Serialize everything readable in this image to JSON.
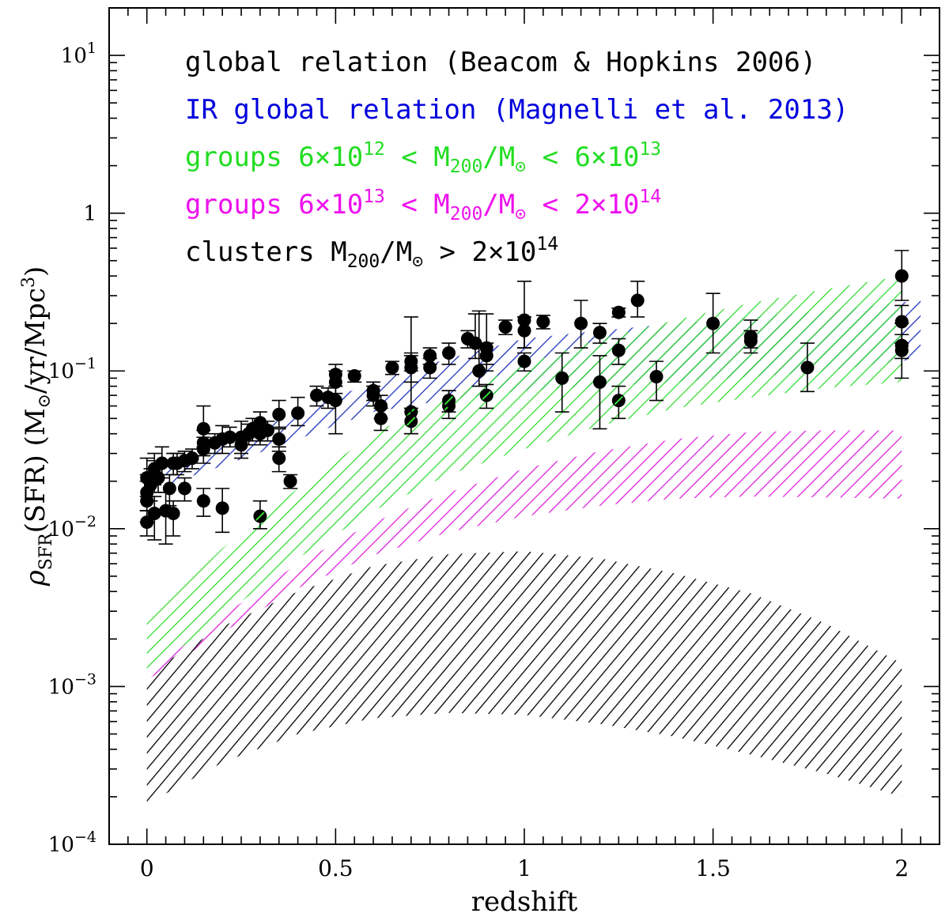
{
  "chart_data": {
    "type": "scatter",
    "title": "",
    "xlabel": "redshift",
    "ylabel": {
      "rho": "ρ",
      "sub": "SFR",
      "main": "(SFR)",
      "units_prefix": "(M",
      "units_sym": "⊙",
      "units_mid": "/yr/Mpc",
      "units_sup": "3",
      "units_close": ")"
    },
    "x_scale": "linear",
    "y_scale": "log",
    "xlim": [
      -0.1,
      2.1
    ],
    "ylim": [
      0.0001,
      20
    ],
    "x_ticks": [
      {
        "value": 0,
        "label": "0"
      },
      {
        "value": 0.5,
        "label": "0.5"
      },
      {
        "value": 1,
        "label": "1"
      },
      {
        "value": 1.5,
        "label": "1.5"
      },
      {
        "value": 2,
        "label": "2"
      }
    ],
    "y_ticks": [
      {
        "value": 0.0001,
        "base": "10",
        "exp": "−4"
      },
      {
        "value": 0.001,
        "base": "10",
        "exp": "−3"
      },
      {
        "value": 0.01,
        "base": "10",
        "exp": "−2"
      },
      {
        "value": 0.1,
        "base": "10",
        "exp": "−1"
      },
      {
        "value": 1,
        "base": "1",
        "exp": ""
      },
      {
        "value": 10,
        "base": "10",
        "exp": "1"
      }
    ],
    "legend": [
      {
        "parts": [
          {
            "t": "global relation (Beacom & Hopkins 2006)"
          }
        ],
        "color": "#000000"
      },
      {
        "parts": [
          {
            "t": "IR global relation (Magnelli et al. 2013)"
          }
        ],
        "color": "#0000dd"
      },
      {
        "parts": [
          {
            "t": "groups 6×10"
          },
          {
            "t": "12",
            "sup": true
          },
          {
            "t": " < M"
          },
          {
            "t": "200",
            "sub": true
          },
          {
            "t": "/M"
          },
          {
            "t": "⊙",
            "sub": true
          },
          {
            "t": " < 6×10"
          },
          {
            "t": "13",
            "sup": true
          }
        ],
        "color": "#22dd22"
      },
      {
        "parts": [
          {
            "t": "groups 6×10"
          },
          {
            "t": "13",
            "sup": true
          },
          {
            "t": " < M"
          },
          {
            "t": "200",
            "sub": true
          },
          {
            "t": "/M"
          },
          {
            "t": "⊙",
            "sub": true
          },
          {
            "t": " < 2×10"
          },
          {
            "t": "14",
            "sup": true
          }
        ],
        "color": "#ee11ee"
      },
      {
        "parts": [
          {
            "t": "clusters M"
          },
          {
            "t": "200",
            "sub": true
          },
          {
            "t": "/M"
          },
          {
            "t": "⊙",
            "sub": true
          },
          {
            "t": " > 2×10"
          },
          {
            "t": "14",
            "sup": true
          }
        ],
        "color": "#000000"
      }
    ],
    "bands": [
      {
        "name": "IR global relation (Magnelli et al. 2013)",
        "color": "#2233bb",
        "x": [
          0.05,
          0.2,
          0.4,
          0.6,
          0.8,
          1.0,
          1.2,
          1.4,
          1.6,
          1.8,
          2.05
        ],
        "lower": [
          0.019,
          0.025,
          0.037,
          0.055,
          0.066,
          0.075,
          0.08,
          0.085,
          0.092,
          0.1,
          0.12
        ],
        "upper": [
          0.026,
          0.035,
          0.055,
          0.085,
          0.12,
          0.16,
          0.18,
          0.2,
          0.22,
          0.24,
          0.28
        ]
      },
      {
        "name": "groups 6e12-6e13",
        "color": "#33dd33",
        "x": [
          0.0,
          0.2,
          0.4,
          0.6,
          0.8,
          1.0,
          1.2,
          1.4,
          1.6,
          1.8,
          2.0
        ],
        "lower": [
          0.0012,
          0.0028,
          0.0065,
          0.013,
          0.022,
          0.032,
          0.045,
          0.058,
          0.068,
          0.078,
          0.085
        ],
        "upper": [
          0.0026,
          0.0075,
          0.018,
          0.04,
          0.07,
          0.11,
          0.16,
          0.21,
          0.27,
          0.33,
          0.4
        ]
      },
      {
        "name": "groups 6e13-2e14",
        "color": "#dd22dd",
        "x": [
          0.0,
          0.2,
          0.4,
          0.6,
          0.8,
          1.0,
          1.2,
          1.4,
          1.6,
          1.8,
          2.0
        ],
        "lower": [
          0.0011,
          0.0022,
          0.0042,
          0.0068,
          0.0095,
          0.012,
          0.014,
          0.0155,
          0.016,
          0.0158,
          0.0155
        ],
        "upper": [
          0.0012,
          0.0028,
          0.006,
          0.011,
          0.017,
          0.024,
          0.031,
          0.037,
          0.041,
          0.042,
          0.042
        ]
      },
      {
        "name": "clusters > 2e14",
        "color": "#000000",
        "x": [
          0.0,
          0.2,
          0.4,
          0.6,
          0.8,
          1.0,
          1.2,
          1.4,
          1.6,
          1.8,
          2.0
        ],
        "lower": [
          0.00018,
          0.00033,
          0.0005,
          0.00063,
          0.00068,
          0.00066,
          0.00058,
          0.00048,
          0.00037,
          0.00028,
          0.0002
        ],
        "upper": [
          0.0012,
          0.0024,
          0.004,
          0.0058,
          0.0069,
          0.0072,
          0.0065,
          0.0052,
          0.0039,
          0.0025,
          0.0014
        ]
      }
    ],
    "points": [
      {
        "x": 0.0,
        "y": 0.021,
        "lo": 0.016,
        "hi": 0.028
      },
      {
        "x": 0.0,
        "y": 0.017,
        "lo": 0.013,
        "hi": 0.022
      },
      {
        "x": 0.0,
        "y": 0.015,
        "lo": 0.011,
        "hi": 0.02
      },
      {
        "x": 0.0,
        "y": 0.011,
        "lo": 0.009,
        "hi": 0.013
      },
      {
        "x": 0.01,
        "y": 0.019,
        "lo": 0.015,
        "hi": 0.024
      },
      {
        "x": 0.02,
        "y": 0.024,
        "lo": 0.019,
        "hi": 0.03
      },
      {
        "x": 0.02,
        "y": 0.022,
        "lo": 0.017,
        "hi": 0.027
      },
      {
        "x": 0.02,
        "y": 0.0125,
        "lo": 0.0085,
        "hi": 0.016
      },
      {
        "x": 0.03,
        "y": 0.021,
        "lo": 0.017,
        "hi": 0.026
      },
      {
        "x": 0.04,
        "y": 0.026,
        "lo": 0.021,
        "hi": 0.033
      },
      {
        "x": 0.05,
        "y": 0.013,
        "lo": 0.008,
        "hi": 0.017
      },
      {
        "x": 0.06,
        "y": 0.018,
        "lo": 0.014,
        "hi": 0.022
      },
      {
        "x": 0.07,
        "y": 0.026,
        "lo": 0.022,
        "hi": 0.03
      },
      {
        "x": 0.07,
        "y": 0.0125,
        "lo": 0.009,
        "hi": 0.015
      },
      {
        "x": 0.08,
        "y": 0.026,
        "lo": 0.022,
        "hi": 0.03
      },
      {
        "x": 0.1,
        "y": 0.027,
        "lo": 0.023,
        "hi": 0.031
      },
      {
        "x": 0.1,
        "y": 0.018,
        "lo": 0.015,
        "hi": 0.021
      },
      {
        "x": 0.12,
        "y": 0.028,
        "lo": 0.024,
        "hi": 0.032
      },
      {
        "x": 0.15,
        "y": 0.043,
        "lo": 0.033,
        "hi": 0.06
      },
      {
        "x": 0.15,
        "y": 0.035,
        "lo": 0.029,
        "hi": 0.042
      },
      {
        "x": 0.15,
        "y": 0.032,
        "lo": 0.026,
        "hi": 0.038
      },
      {
        "x": 0.15,
        "y": 0.015,
        "lo": 0.012,
        "hi": 0.018
      },
      {
        "x": 0.18,
        "y": 0.035,
        "lo": 0.03,
        "hi": 0.04
      },
      {
        "x": 0.2,
        "y": 0.037,
        "lo": 0.03,
        "hi": 0.045
      },
      {
        "x": 0.2,
        "y": 0.0135,
        "lo": 0.0095,
        "hi": 0.018
      },
      {
        "x": 0.22,
        "y": 0.038,
        "lo": 0.033,
        "hi": 0.044
      },
      {
        "x": 0.25,
        "y": 0.038,
        "lo": 0.03,
        "hi": 0.048
      },
      {
        "x": 0.25,
        "y": 0.034,
        "lo": 0.028,
        "hi": 0.04
      },
      {
        "x": 0.27,
        "y": 0.04,
        "lo": 0.034,
        "hi": 0.046
      },
      {
        "x": 0.28,
        "y": 0.043,
        "lo": 0.036,
        "hi": 0.05
      },
      {
        "x": 0.3,
        "y": 0.047,
        "lo": 0.04,
        "hi": 0.055
      },
      {
        "x": 0.3,
        "y": 0.04,
        "lo": 0.034,
        "hi": 0.046
      },
      {
        "x": 0.3,
        "y": 0.012,
        "lo": 0.01,
        "hi": 0.015,
        "tint": "#33dd33"
      },
      {
        "x": 0.32,
        "y": 0.042,
        "lo": 0.036,
        "hi": 0.048
      },
      {
        "x": 0.35,
        "y": 0.053,
        "lo": 0.044,
        "hi": 0.065
      },
      {
        "x": 0.35,
        "y": 0.037,
        "lo": 0.031,
        "hi": 0.043
      },
      {
        "x": 0.35,
        "y": 0.028,
        "lo": 0.023,
        "hi": 0.033
      },
      {
        "x": 0.38,
        "y": 0.02,
        "lo": 0.018,
        "hi": 0.022
      },
      {
        "x": 0.4,
        "y": 0.054,
        "lo": 0.045,
        "hi": 0.068
      },
      {
        "x": 0.45,
        "y": 0.07,
        "lo": 0.06,
        "hi": 0.08
      },
      {
        "x": 0.48,
        "y": 0.068,
        "lo": 0.058,
        "hi": 0.078
      },
      {
        "x": 0.5,
        "y": 0.095,
        "lo": 0.08,
        "hi": 0.11
      },
      {
        "x": 0.5,
        "y": 0.085,
        "lo": 0.072,
        "hi": 0.1
      },
      {
        "x": 0.5,
        "y": 0.065,
        "lo": 0.04,
        "hi": 0.08
      },
      {
        "x": 0.55,
        "y": 0.093,
        "lo": 0.085,
        "hi": 0.1
      },
      {
        "x": 0.6,
        "y": 0.075,
        "lo": 0.065,
        "hi": 0.085
      },
      {
        "x": 0.6,
        "y": 0.07,
        "lo": 0.06,
        "hi": 0.08
      },
      {
        "x": 0.62,
        "y": 0.06,
        "lo": 0.05,
        "hi": 0.07
      },
      {
        "x": 0.62,
        "y": 0.05,
        "lo": 0.042,
        "hi": 0.058
      },
      {
        "x": 0.65,
        "y": 0.105,
        "lo": 0.095,
        "hi": 0.115
      },
      {
        "x": 0.7,
        "y": 0.115,
        "lo": 0.1,
        "hi": 0.13
      },
      {
        "x": 0.7,
        "y": 0.105,
        "lo": 0.085,
        "hi": 0.125
      },
      {
        "x": 0.7,
        "y": 0.055,
        "lo": 0.04,
        "hi": 0.22,
        "tint": "#33dd33"
      },
      {
        "x": 0.7,
        "y": 0.048,
        "lo": 0.04,
        "hi": 0.058,
        "tint": "#33dd33"
      },
      {
        "x": 0.75,
        "y": 0.125,
        "lo": 0.11,
        "hi": 0.14
      },
      {
        "x": 0.75,
        "y": 0.105,
        "lo": 0.09,
        "hi": 0.12
      },
      {
        "x": 0.8,
        "y": 0.13,
        "lo": 0.11,
        "hi": 0.15
      },
      {
        "x": 0.8,
        "y": 0.06,
        "lo": 0.05,
        "hi": 0.075,
        "tint": "#33dd33"
      },
      {
        "x": 0.8,
        "y": 0.065,
        "lo": 0.055,
        "hi": 0.075,
        "tint": "#33dd33"
      },
      {
        "x": 0.85,
        "y": 0.16,
        "lo": 0.14,
        "hi": 0.18
      },
      {
        "x": 0.87,
        "y": 0.15,
        "lo": 0.12,
        "hi": 0.23
      },
      {
        "x": 0.88,
        "y": 0.1,
        "lo": 0.08,
        "hi": 0.24
      },
      {
        "x": 0.9,
        "y": 0.14,
        "lo": 0.11,
        "hi": 0.23
      },
      {
        "x": 0.9,
        "y": 0.125,
        "lo": 0.1,
        "hi": 0.15
      },
      {
        "x": 0.9,
        "y": 0.07,
        "lo": 0.058,
        "hi": 0.082,
        "tint": "#33dd33"
      },
      {
        "x": 0.95,
        "y": 0.19,
        "lo": 0.17,
        "hi": 0.21
      },
      {
        "x": 1.0,
        "y": 0.21,
        "lo": 0.14,
        "hi": 0.37
      },
      {
        "x": 1.0,
        "y": 0.18,
        "lo": 0.14,
        "hi": 0.22
      },
      {
        "x": 1.0,
        "y": 0.115,
        "lo": 0.1,
        "hi": 0.13
      },
      {
        "x": 1.05,
        "y": 0.205,
        "lo": 0.185,
        "hi": 0.225
      },
      {
        "x": 1.1,
        "y": 0.09,
        "lo": 0.055,
        "hi": 0.13
      },
      {
        "x": 1.15,
        "y": 0.2,
        "lo": 0.14,
        "hi": 0.28
      },
      {
        "x": 1.2,
        "y": 0.175,
        "lo": 0.15,
        "hi": 0.2
      },
      {
        "x": 1.2,
        "y": 0.085,
        "lo": 0.043,
        "hi": 0.125
      },
      {
        "x": 1.25,
        "y": 0.235,
        "lo": 0.22,
        "hi": 0.25
      },
      {
        "x": 1.25,
        "y": 0.135,
        "lo": 0.11,
        "hi": 0.16
      },
      {
        "x": 1.25,
        "y": 0.065,
        "lo": 0.05,
        "hi": 0.08,
        "tint": "#33dd33"
      },
      {
        "x": 1.3,
        "y": 0.28,
        "lo": 0.22,
        "hi": 0.37
      },
      {
        "x": 1.35,
        "y": 0.092,
        "lo": 0.065,
        "hi": 0.115
      },
      {
        "x": 1.5,
        "y": 0.2,
        "lo": 0.13,
        "hi": 0.31
      },
      {
        "x": 1.6,
        "y": 0.165,
        "lo": 0.14,
        "hi": 0.21
      },
      {
        "x": 1.6,
        "y": 0.155,
        "lo": 0.13,
        "hi": 0.18
      },
      {
        "x": 1.75,
        "y": 0.105,
        "lo": 0.074,
        "hi": 0.15
      },
      {
        "x": 2.0,
        "y": 0.4,
        "lo": 0.28,
        "hi": 0.58
      },
      {
        "x": 2.0,
        "y": 0.205,
        "lo": 0.15,
        "hi": 0.26
      },
      {
        "x": 2.0,
        "y": 0.145,
        "lo": 0.12,
        "hi": 0.17
      },
      {
        "x": 2.0,
        "y": 0.135,
        "lo": 0.09,
        "hi": 0.2
      }
    ]
  }
}
